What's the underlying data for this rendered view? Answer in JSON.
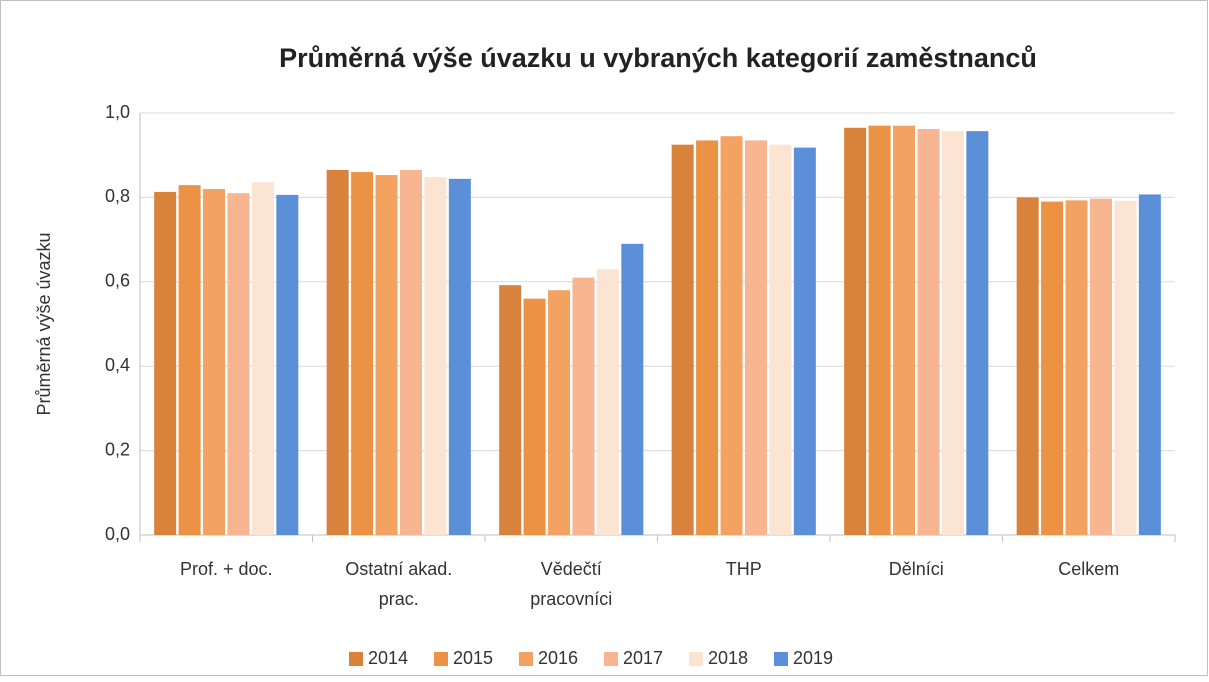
{
  "chart_data": {
    "type": "bar",
    "title": "Průměrná výše úvazku u vybraných kategorií zaměstnanců",
    "y_label": "Průměrná výše úvazku",
    "categories": [
      "Prof. + doc.",
      "Ostatní akad. prac.",
      "Vědečtí pracovníci",
      "THP",
      "Dělníci",
      "Celkem"
    ],
    "series": [
      {
        "name": "2014",
        "color": "#d8823b",
        "values": [
          0.813,
          0.865,
          0.592,
          0.925,
          0.965,
          0.8
        ]
      },
      {
        "name": "2015",
        "color": "#ec9244",
        "values": [
          0.829,
          0.86,
          0.56,
          0.935,
          0.97,
          0.79
        ]
      },
      {
        "name": "2016",
        "color": "#f4a262",
        "values": [
          0.82,
          0.853,
          0.58,
          0.945,
          0.97,
          0.793
        ]
      },
      {
        "name": "2017",
        "color": "#f7b591",
        "values": [
          0.81,
          0.865,
          0.61,
          0.935,
          0.962,
          0.797
        ]
      },
      {
        "name": "2018",
        "color": "#fce4d3",
        "values": [
          0.836,
          0.848,
          0.63,
          0.925,
          0.957,
          0.792
        ]
      },
      {
        "name": "2019",
        "color": "#5b8fd7",
        "values": [
          0.806,
          0.844,
          0.69,
          0.918,
          0.957,
          0.807
        ]
      }
    ],
    "ylim": [
      0,
      1
    ],
    "yticks": [
      {
        "value": 0,
        "label": "0,0"
      },
      {
        "value": 0.2,
        "label": "0,2"
      },
      {
        "value": 0.4,
        "label": "0,4"
      },
      {
        "value": 0.6,
        "label": "0,6"
      },
      {
        "value": 0.8,
        "label": "0,8"
      },
      {
        "value": 1,
        "label": "1,0"
      }
    ],
    "grid": true,
    "legend": "bottom"
  }
}
